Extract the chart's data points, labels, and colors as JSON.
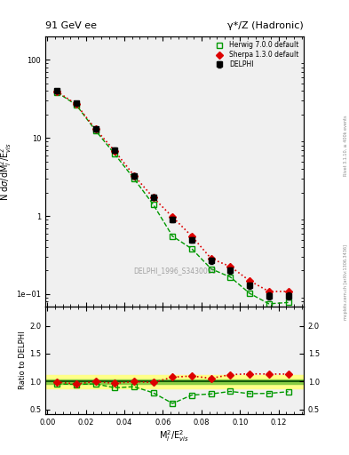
{
  "title_left": "91 GeV ee",
  "title_right": "γ*/Z (Hadronic)",
  "ylabel_main": "N dσ/dMₗ²/E²$_{vis}$",
  "ylabel_ratio": "Ratio to DELPHI",
  "xlabel": "Mₗ²/E²$_{vis}$",
  "watermark": "DELPHI_1996_S3430090",
  "right_label": "Rivet 3.1.10, ≥ 400k events",
  "right_label2": "mcplots.cern.ch [arXiv:1306.3436]",
  "delphi_x": [
    0.005,
    0.015,
    0.025,
    0.035,
    0.045,
    0.055,
    0.065,
    0.075,
    0.085,
    0.095,
    0.105,
    0.115,
    0.125
  ],
  "delphi_y": [
    40.0,
    28.0,
    13.0,
    7.0,
    3.3,
    1.75,
    0.9,
    0.5,
    0.27,
    0.2,
    0.13,
    0.095,
    0.095
  ],
  "delphi_yerr": [
    2.5,
    1.8,
    0.9,
    0.45,
    0.25,
    0.12,
    0.07,
    0.04,
    0.025,
    0.018,
    0.012,
    0.01,
    0.01
  ],
  "herwig_x": [
    0.005,
    0.015,
    0.025,
    0.035,
    0.045,
    0.055,
    0.065,
    0.075,
    0.085,
    0.095,
    0.105,
    0.115,
    0.125
  ],
  "herwig_y": [
    38.5,
    26.5,
    12.5,
    6.2,
    3.0,
    1.4,
    0.55,
    0.38,
    0.21,
    0.165,
    0.102,
    0.075,
    0.078
  ],
  "sherpa_x": [
    0.005,
    0.015,
    0.025,
    0.035,
    0.045,
    0.055,
    0.065,
    0.075,
    0.085,
    0.095,
    0.105,
    0.115,
    0.125
  ],
  "sherpa_y": [
    39.5,
    27.0,
    13.0,
    6.8,
    3.3,
    1.72,
    0.97,
    0.55,
    0.285,
    0.225,
    0.148,
    0.108,
    0.108
  ],
  "herwig_ratio": [
    0.96,
    0.95,
    0.96,
    0.89,
    0.91,
    0.8,
    0.61,
    0.76,
    0.78,
    0.825,
    0.785,
    0.79,
    0.82
  ],
  "sherpa_ratio": [
    0.99,
    0.96,
    1.0,
    0.97,
    1.0,
    0.985,
    1.08,
    1.1,
    1.06,
    1.125,
    1.14,
    1.135,
    1.135
  ],
  "delphi_color": "#000000",
  "herwig_color": "#009900",
  "sherpa_color": "#dd0000",
  "green_band_inner_lo": 0.96,
  "green_band_inner_hi": 1.04,
  "yellow_band_outer_lo": 0.88,
  "yellow_band_outer_hi": 1.12,
  "ylim_main": [
    0.07,
    200
  ],
  "ylim_ratio": [
    0.42,
    2.35
  ],
  "xlim": [
    -0.001,
    0.133
  ],
  "bg_color": "#ffffff",
  "inner_bg": "#f0f0f0"
}
